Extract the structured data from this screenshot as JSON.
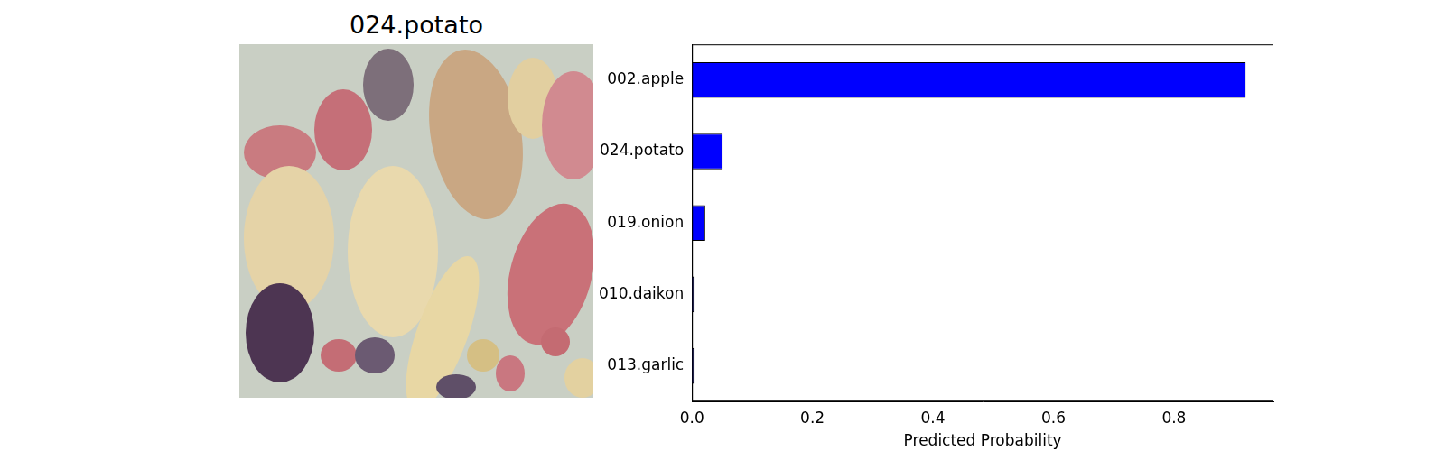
{
  "image_title": "024.potato",
  "chart_data": {
    "type": "bar",
    "orientation": "horizontal",
    "categories": [
      "002.apple",
      "024.potato",
      "019.onion",
      "010.daikon",
      "013.garlic"
    ],
    "values": [
      0.919,
      0.051,
      0.022,
      0.003,
      0.003
    ],
    "color": "#0000ff",
    "x_label": "Predicted Probability",
    "xlim": [
      0,
      0.965
    ],
    "xticks": [
      {
        "value": 0,
        "label": "0.0"
      },
      {
        "value": 0.2,
        "label": "0.2"
      },
      {
        "value": 0.4,
        "label": "0.4"
      },
      {
        "value": 0.6,
        "label": "0.6"
      },
      {
        "value": 0.8,
        "label": "0.8"
      }
    ],
    "grid": false
  }
}
